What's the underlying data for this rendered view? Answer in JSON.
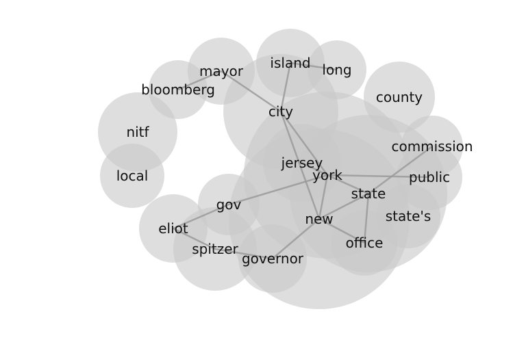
{
  "diagram": {
    "type": "word-cooccurrence-network",
    "colors": {
      "node": "#c8c8c8",
      "edge": "#9a9a9a",
      "label": "#111111"
    },
    "nodes": [
      {
        "id": "new",
        "label": "new"
      },
      {
        "id": "york",
        "label": "york"
      },
      {
        "id": "state",
        "label": "state"
      },
      {
        "id": "city",
        "label": "city"
      },
      {
        "id": "jersey",
        "label": "jersey"
      },
      {
        "id": "island",
        "label": "island"
      },
      {
        "id": "long",
        "label": "long"
      },
      {
        "id": "county",
        "label": "county"
      },
      {
        "id": "mayor",
        "label": "mayor"
      },
      {
        "id": "bloomberg",
        "label": "bloomberg"
      },
      {
        "id": "nitf",
        "label": "nitf"
      },
      {
        "id": "local",
        "label": "local"
      },
      {
        "id": "commission",
        "label": "commission"
      },
      {
        "id": "public",
        "label": "public"
      },
      {
        "id": "state_s",
        "label": "state's"
      },
      {
        "id": "office",
        "label": "office"
      },
      {
        "id": "gov",
        "label": "gov"
      },
      {
        "id": "eliot",
        "label": "eliot"
      },
      {
        "id": "spitzer",
        "label": "spitzer"
      },
      {
        "id": "governor",
        "label": "governor"
      }
    ],
    "edges": [
      [
        "mayor",
        "bloomberg"
      ],
      [
        "mayor",
        "city"
      ],
      [
        "island",
        "city"
      ],
      [
        "island",
        "long"
      ],
      [
        "city",
        "york"
      ],
      [
        "city",
        "new"
      ],
      [
        "york",
        "jersey"
      ],
      [
        "york",
        "new"
      ],
      [
        "york",
        "state"
      ],
      [
        "york",
        "gov"
      ],
      [
        "york",
        "public"
      ],
      [
        "state",
        "commission"
      ],
      [
        "state",
        "new"
      ],
      [
        "state",
        "office"
      ],
      [
        "new",
        "governor"
      ],
      [
        "new",
        "office"
      ],
      [
        "gov",
        "eliot"
      ],
      [
        "eliot",
        "spitzer"
      ],
      [
        "spitzer",
        "governor"
      ]
    ]
  }
}
